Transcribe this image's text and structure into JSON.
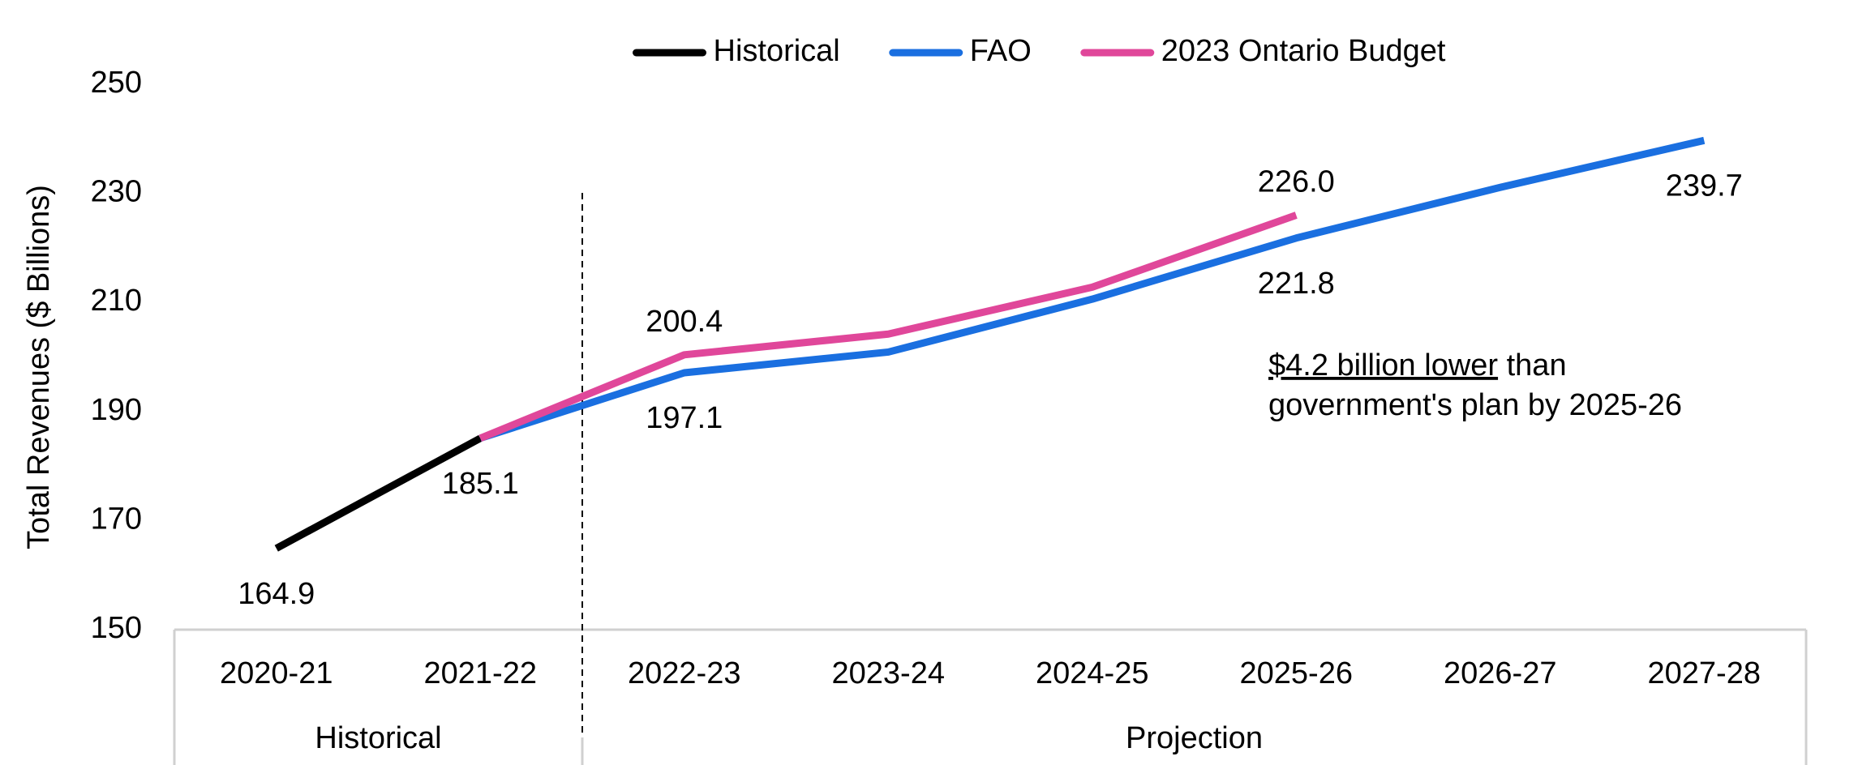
{
  "chart_data": {
    "type": "line",
    "ylabel": "Total Revenues ($ Billions)",
    "categories": [
      "2020-21",
      "2021-22",
      "2022-23",
      "2023-24",
      "2024-25",
      "2025-26",
      "2026-27",
      "2027-28"
    ],
    "groups": [
      {
        "label": "Historical",
        "span": [
          0,
          1
        ]
      },
      {
        "label": "Projection",
        "span": [
          2,
          7
        ]
      }
    ],
    "series": [
      {
        "name": "Historical",
        "color": "#000000",
        "values": [
          164.9,
          185.1,
          null,
          null,
          null,
          null,
          null,
          null
        ],
        "value_labels": [
          "164.9",
          "185.1",
          null,
          null,
          null,
          null,
          null,
          null
        ]
      },
      {
        "name": "FAO",
        "color": "#1a6fe0",
        "values": [
          null,
          185.1,
          197.1,
          200.9,
          210.6,
          221.8,
          231.1,
          239.7
        ],
        "value_labels": [
          null,
          null,
          "197.1",
          null,
          null,
          "221.8",
          null,
          "239.7"
        ]
      },
      {
        "name": "2023 Ontario Budget",
        "color": "#e0479a",
        "values": [
          null,
          185.1,
          200.4,
          204.2,
          212.8,
          226.0,
          null,
          null
        ],
        "value_labels": [
          null,
          null,
          "200.4",
          null,
          null,
          "226.0",
          null,
          null
        ]
      }
    ],
    "ylim": [
      150,
      250
    ],
    "yticks": [
      150,
      170,
      190,
      210,
      230,
      250
    ],
    "annotation": {
      "underlined": "$4.2 billion lower",
      "rest": " than",
      "line2": "government's plan by 2025-26"
    },
    "legend": "top"
  }
}
